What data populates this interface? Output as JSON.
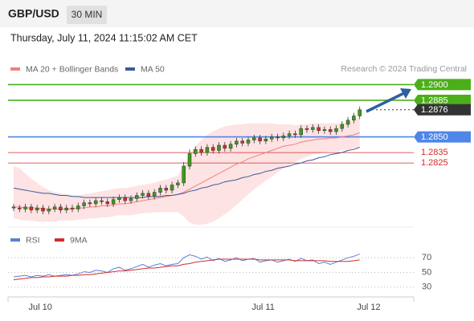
{
  "header": {
    "symbol": "GBP/USD",
    "interval": "30 MIN",
    "timestamp": "Thursday, July 11, 2024 11:15:02 AM CET"
  },
  "chart_data": [
    {
      "type": "candlestick",
      "source": "Research © 2024 Trading Central",
      "up_color": "#3d9a1a",
      "down_color": "#d62b2b",
      "ylim": [
        1.2766,
        1.2908
      ],
      "categories": [
        null,
        null,
        null,
        null,
        "Jul 10",
        null,
        null,
        null,
        null,
        null,
        null,
        null,
        null,
        null,
        null,
        null,
        null,
        null,
        null,
        null,
        null,
        null,
        null,
        null,
        null,
        null,
        null,
        null,
        null,
        null,
        null,
        null,
        null,
        null,
        null,
        null,
        null,
        null,
        null,
        null,
        null,
        null,
        "Jul 11",
        null,
        null,
        null,
        null,
        null,
        null,
        null,
        null,
        null,
        null,
        null,
        null,
        null,
        null,
        null,
        null,
        null,
        "Jul 12",
        null,
        null,
        null
      ],
      "open": [
        1.2783,
        1.2782,
        1.2781,
        1.2783,
        1.278,
        1.2782,
        1.2779,
        1.2781,
        1.2783,
        1.278,
        1.2782,
        1.2781,
        1.2784,
        1.2787,
        1.2786,
        1.2789,
        1.2788,
        1.2786,
        1.279,
        1.2792,
        1.2789,
        1.2791,
        1.2794,
        1.2796,
        1.2793,
        1.2797,
        1.2801,
        1.2799,
        1.2804,
        1.2806,
        1.2822,
        1.2834,
        1.2838,
        1.2835,
        1.284,
        1.2837,
        1.2842,
        1.2839,
        1.2843,
        1.2846,
        1.2844,
        1.2847,
        1.2849,
        1.2846,
        1.2848,
        1.285,
        1.2849,
        1.2851,
        1.2853,
        1.2852,
        1.2858,
        1.2857,
        1.2859,
        1.2856,
        1.2857,
        1.2855,
        1.2858,
        1.2862,
        1.2866,
        1.287,
        null,
        null,
        null,
        null
      ],
      "high": [
        1.2786,
        1.2785,
        1.2786,
        1.2786,
        1.2785,
        1.2785,
        1.2784,
        1.2786,
        1.2786,
        1.2785,
        1.2785,
        1.2787,
        1.279,
        1.279,
        1.2792,
        1.2792,
        1.2791,
        1.2793,
        1.2795,
        1.2795,
        1.2794,
        1.2797,
        1.2799,
        1.2799,
        1.28,
        1.2804,
        1.2804,
        1.2807,
        1.2809,
        1.2826,
        1.2838,
        1.2841,
        1.2841,
        1.2843,
        1.2843,
        1.2845,
        1.2845,
        1.2846,
        1.2849,
        1.2849,
        1.285,
        1.2852,
        1.2852,
        1.2851,
        1.2853,
        1.2853,
        1.2854,
        1.2856,
        1.2856,
        1.2861,
        1.2861,
        1.2862,
        1.2862,
        1.286,
        1.286,
        1.2861,
        1.2865,
        1.2869,
        1.2873,
        1.2879,
        null,
        null,
        null,
        null
      ],
      "low": [
        1.2779,
        1.2778,
        1.2778,
        1.2777,
        1.2777,
        1.2776,
        1.2776,
        1.2778,
        1.2777,
        1.2777,
        1.2778,
        1.2778,
        1.2781,
        1.2783,
        1.2783,
        1.2785,
        1.2783,
        1.2783,
        1.2787,
        1.2786,
        1.2786,
        1.2788,
        1.2791,
        1.279,
        1.279,
        1.2794,
        1.2796,
        1.2796,
        1.2801,
        1.2803,
        1.2819,
        1.2831,
        1.2832,
        1.2832,
        1.2834,
        1.2834,
        1.2836,
        1.2836,
        1.284,
        1.2841,
        1.2841,
        1.2844,
        1.2843,
        1.2843,
        1.2845,
        1.2846,
        1.2846,
        1.2848,
        1.2849,
        1.2849,
        1.2854,
        1.2854,
        1.2853,
        1.2853,
        1.2852,
        1.2852,
        1.2855,
        1.2859,
        1.2863,
        1.2867,
        null,
        null,
        null,
        null
      ],
      "close": [
        1.2782,
        1.2781,
        1.2783,
        1.278,
        1.2782,
        1.2779,
        1.2781,
        1.2783,
        1.278,
        1.2782,
        1.2781,
        1.2784,
        1.2787,
        1.2786,
        1.2789,
        1.2788,
        1.2786,
        1.279,
        1.2792,
        1.2789,
        1.2791,
        1.2794,
        1.2796,
        1.2793,
        1.2797,
        1.2801,
        1.2799,
        1.2804,
        1.2806,
        1.2822,
        1.2834,
        1.2838,
        1.2835,
        1.284,
        1.2837,
        1.2842,
        1.2839,
        1.2843,
        1.2846,
        1.2844,
        1.2847,
        1.2849,
        1.2846,
        1.2848,
        1.285,
        1.2849,
        1.2851,
        1.2853,
        1.2852,
        1.2858,
        1.2857,
        1.2859,
        1.2856,
        1.2857,
        1.2855,
        1.2858,
        1.2862,
        1.2866,
        1.287,
        1.2876,
        null,
        null,
        null,
        null
      ],
      "series": [
        {
          "name": "MA 20 + Bollinger Bands",
          "color": "#f08080",
          "band_color": "#fde3e3",
          "values": [
            1.2783,
            1.2783,
            1.2782,
            1.2782,
            1.2782,
            1.2781,
            1.2781,
            1.2781,
            1.2781,
            1.2781,
            1.2781,
            1.2782,
            1.2782,
            1.2783,
            1.2783,
            1.2784,
            1.2784,
            1.2785,
            1.2786,
            1.2786,
            1.2787,
            1.2788,
            1.2789,
            1.279,
            1.2791,
            1.2792,
            1.2793,
            1.2794,
            1.2795,
            1.2797,
            1.28,
            1.2803,
            1.2806,
            1.2809,
            1.2812,
            1.2815,
            1.2818,
            1.2821,
            1.2824,
            1.2826,
            1.2829,
            1.2831,
            1.2833,
            1.2835,
            1.2837,
            1.2839,
            1.2841,
            1.2842,
            1.2843,
            1.2845,
            1.2846,
            1.2847,
            1.2848,
            1.2848,
            1.2849,
            1.2849,
            1.285,
            1.2851,
            1.2852,
            1.2854,
            null,
            null,
            null,
            null
          ],
          "upper": [
            1.2822,
            1.282,
            1.2815,
            1.281,
            1.2806,
            1.2802,
            1.2799,
            1.2797,
            1.2796,
            1.2795,
            1.2794,
            1.2794,
            1.2795,
            1.2796,
            1.2797,
            1.2798,
            1.2799,
            1.28,
            1.2801,
            1.2801,
            1.2802,
            1.2803,
            1.2804,
            1.2805,
            1.2806,
            1.2808,
            1.2809,
            1.2811,
            1.2813,
            1.2822,
            1.2833,
            1.2841,
            1.2847,
            1.2852,
            1.2855,
            1.2858,
            1.286,
            1.2861,
            1.2862,
            1.2862,
            1.2863,
            1.2863,
            1.2863,
            1.2863,
            1.2863,
            1.2862,
            1.2862,
            1.2862,
            1.2861,
            1.2862,
            1.2862,
            1.2863,
            1.2863,
            1.2863,
            1.2863,
            1.2863,
            1.2863,
            1.2864,
            1.2866,
            1.2869,
            null,
            null,
            null,
            null
          ],
          "lower": [
            1.2772,
            1.2771,
            1.277,
            1.277,
            1.2769,
            1.2769,
            1.2769,
            1.2769,
            1.277,
            1.277,
            1.277,
            1.2771,
            1.2771,
            1.2772,
            1.2772,
            1.2773,
            1.2773,
            1.2774,
            1.2775,
            1.2775,
            1.2775,
            1.2776,
            1.2777,
            1.2777,
            1.2778,
            1.2778,
            1.2778,
            1.2778,
            1.2778,
            1.2774,
            1.2768,
            1.2766,
            1.2766,
            1.2767,
            1.2769,
            1.2772,
            1.2776,
            1.278,
            1.2785,
            1.279,
            1.2795,
            1.28,
            1.2804,
            1.2808,
            1.2812,
            1.2816,
            1.282,
            1.2823,
            1.2826,
            1.2829,
            1.2831,
            1.2833,
            1.2834,
            1.2835,
            1.2836,
            1.2836,
            1.2837,
            1.2838,
            1.2839,
            1.2839,
            null,
            null,
            null,
            null
          ]
        },
        {
          "name": "MA 50",
          "color": "#3a5a98",
          "values": [
            1.2801,
            1.28,
            1.2799,
            1.2798,
            1.2797,
            1.2796,
            1.2796,
            1.2795,
            1.2794,
            1.2794,
            1.2793,
            1.2793,
            1.2792,
            1.2792,
            1.2792,
            1.2792,
            1.2792,
            1.2792,
            1.2792,
            1.2792,
            1.2792,
            1.2792,
            1.2792,
            1.2793,
            1.2793,
            1.2793,
            1.2794,
            1.2794,
            1.2795,
            1.2796,
            1.2798,
            1.2799,
            1.2801,
            1.2802,
            1.2804,
            1.2805,
            1.2807,
            1.2808,
            1.2809,
            1.2811,
            1.2812,
            1.2814,
            1.2815,
            1.2817,
            1.2818,
            1.282,
            1.2821,
            1.2822,
            1.2824,
            1.2825,
            1.2827,
            1.2828,
            1.283,
            1.2831,
            1.2833,
            1.2834,
            1.2835,
            1.2837,
            1.2838,
            1.284,
            null,
            null,
            null,
            null
          ]
        }
      ],
      "levels": [
        {
          "value": 1.29,
          "label": "1.2900",
          "color": "#4caf1a",
          "boxed": true,
          "line_style": "solid"
        },
        {
          "value": 1.2885,
          "label": "1.2885",
          "color": "#4caf1a",
          "boxed": true,
          "line_style": "solid"
        },
        {
          "value": 1.2876,
          "label": "1.2876",
          "color": "#333333",
          "boxed": true,
          "line_style": "dotted"
        },
        {
          "value": 1.285,
          "label": "1.2850",
          "color": "#4f86e8",
          "boxed": true,
          "line_style": "solid"
        },
        {
          "value": 1.2835,
          "label": "1.2835",
          "color": "#d62b2b",
          "boxed": false,
          "line_style": "solid"
        },
        {
          "value": 1.2825,
          "label": "1.2825",
          "color": "#d62b2b",
          "boxed": false,
          "line_style": "solid"
        }
      ]
    },
    {
      "type": "line",
      "ylim": [
        20,
        80
      ],
      "yticks": [
        30,
        50,
        70
      ],
      "grid": true,
      "series": [
        {
          "name": "RSI",
          "color": "#5b7fd6",
          "values": [
            44,
            45,
            46,
            44,
            46,
            45,
            47,
            45,
            46,
            47,
            46,
            48,
            51,
            50,
            53,
            52,
            50,
            55,
            57,
            53,
            55,
            58,
            61,
            57,
            60,
            62,
            59,
            61,
            62,
            70,
            74,
            72,
            68,
            71,
            66,
            69,
            65,
            67,
            70,
            66,
            68,
            69,
            64,
            66,
            67,
            64,
            66,
            68,
            65,
            69,
            66,
            67,
            62,
            64,
            61,
            64,
            67,
            70,
            72,
            75,
            null,
            null,
            null,
            null
          ]
        },
        {
          "name": "9MA",
          "color": "#d62b2b",
          "values": [
            40,
            41,
            42,
            43,
            43,
            44,
            44,
            45,
            45,
            45,
            46,
            46,
            47,
            47,
            48,
            49,
            50,
            51,
            52,
            52,
            53,
            54,
            55,
            56,
            56,
            57,
            58,
            59,
            59,
            61,
            62,
            64,
            65,
            66,
            67,
            68,
            68,
            68,
            68,
            68,
            68,
            68,
            67,
            67,
            67,
            67,
            67,
            67,
            66,
            66,
            66,
            66,
            66,
            66,
            65,
            65,
            65,
            65,
            66,
            67,
            null,
            null,
            null,
            null
          ]
        }
      ]
    }
  ]
}
